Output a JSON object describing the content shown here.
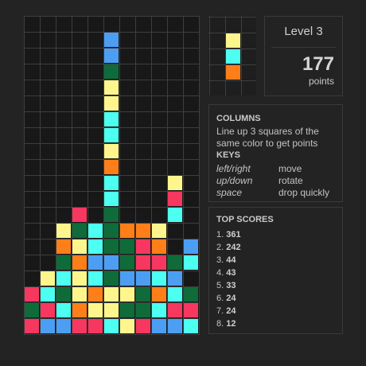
{
  "colors": {
    "yellow": "#fef68d",
    "cyan": "#4dfff0",
    "orange": "#fe7f19",
    "green": "#0f6b39",
    "blue": "#4c9ef3",
    "red": "#f6375f",
    "empty": "#181818"
  },
  "board": {
    "rows": [
      "...........",
      ".....B.....",
      ".....B.....",
      ".....G.....",
      ".....Y.....",
      ".....Y.....",
      ".....C.....",
      ".....C.....",
      ".....Y.....",
      ".....O.....",
      ".....C...Y.",
      ".....C...R.",
      "...R.G...C.",
      "..YGCGOOY..",
      "..OYCGGRO.B",
      "..GOBBGRRGC",
      ".YCYCGBBCB.",
      "RCGYOYYGOCG",
      "GRCOYYGGCRR",
      "RBBRRCYRBBC"
    ]
  },
  "next_piece": [
    "yellow",
    "cyan",
    "orange"
  ],
  "level": {
    "label": "Level 3"
  },
  "score": {
    "value": "177",
    "unit": "points"
  },
  "info": {
    "title": "COLUMNS",
    "description": "Line up 3 squares of the same color to get points",
    "keys_title": "KEYS",
    "keys": [
      {
        "key": "left/right",
        "action": "move"
      },
      {
        "key": "up/down",
        "action": "rotate"
      },
      {
        "key": "space",
        "action": "drop quickly"
      }
    ]
  },
  "top_scores": {
    "title": "TOP SCORES",
    "entries": [
      {
        "rank": "1.",
        "score": "361"
      },
      {
        "rank": "2.",
        "score": "242"
      },
      {
        "rank": "3.",
        "score": "44"
      },
      {
        "rank": "4.",
        "score": "43"
      },
      {
        "rank": "5.",
        "score": "33"
      },
      {
        "rank": "6.",
        "score": "24"
      },
      {
        "rank": "7.",
        "score": "24"
      },
      {
        "rank": "8.",
        "score": "12"
      }
    ]
  }
}
